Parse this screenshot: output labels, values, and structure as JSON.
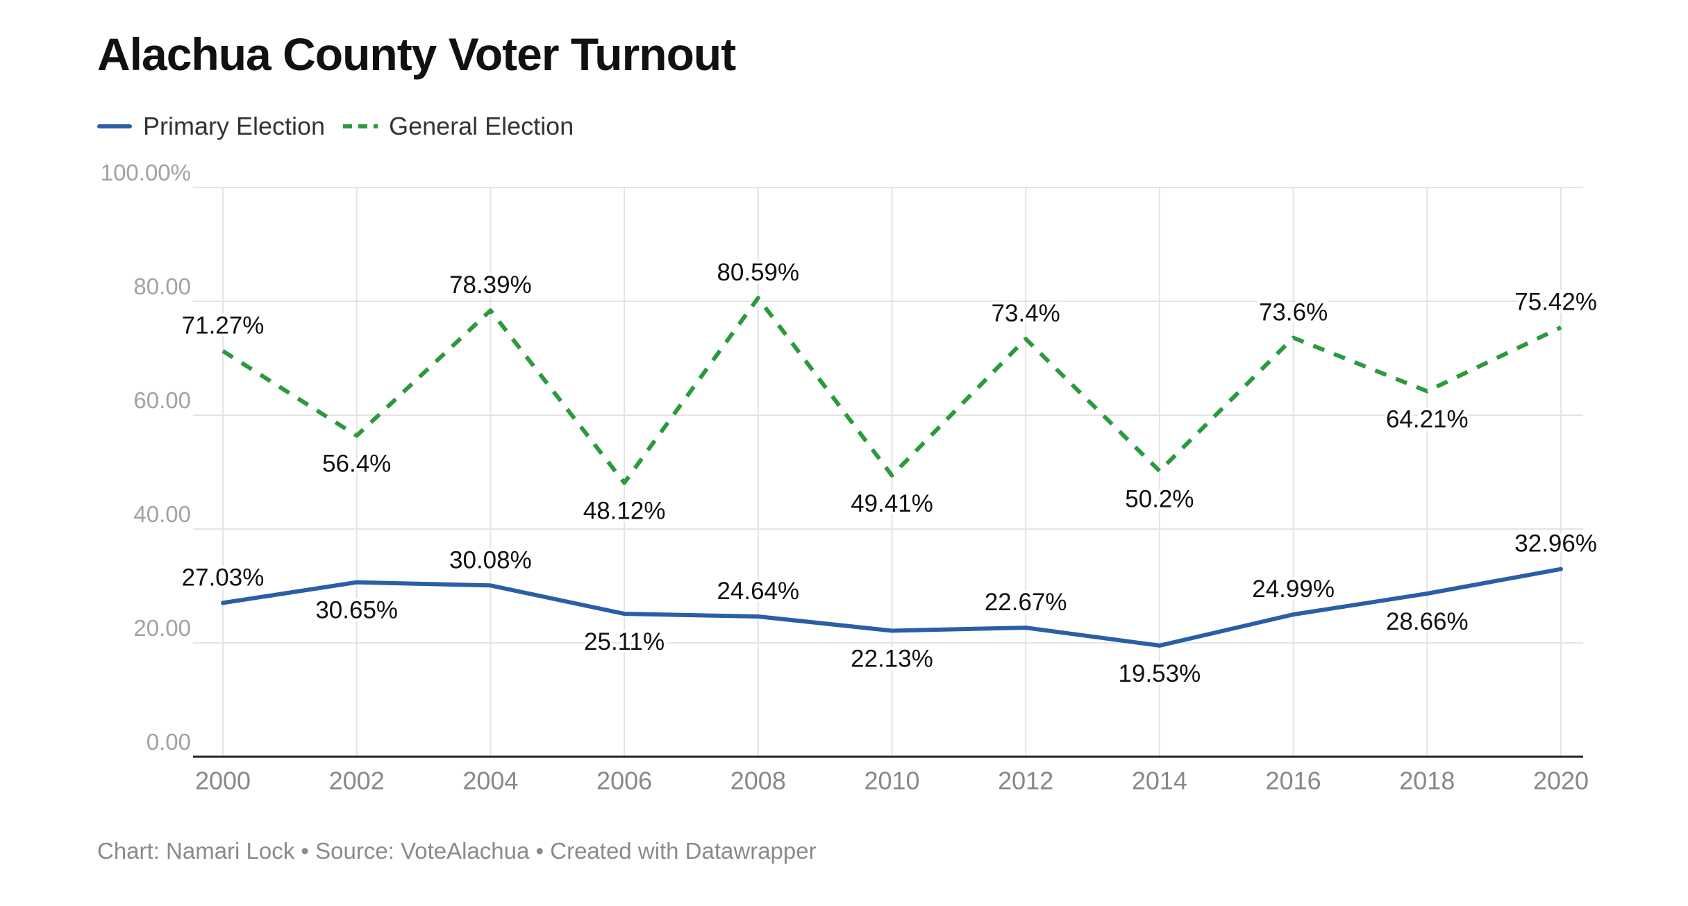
{
  "chart_data": {
    "type": "line",
    "title": "Alachua County Voter Turnout",
    "x": [
      "2000",
      "2002",
      "2004",
      "2006",
      "2008",
      "2010",
      "2012",
      "2014",
      "2016",
      "2018",
      "2020"
    ],
    "yticks": [
      "100.00%",
      "80.00",
      "60.00",
      "40.00",
      "20.00",
      "0.00"
    ],
    "ylim": [
      0,
      100
    ],
    "grid": true,
    "legend_position": "top-left",
    "series": [
      {
        "name": "Primary Election",
        "style": "solid",
        "color": "#2a5ea5",
        "values": [
          27.03,
          30.65,
          30.08,
          25.11,
          24.64,
          22.13,
          22.67,
          19.53,
          24.99,
          28.66,
          32.96
        ],
        "labels": [
          "27.03%",
          "30.65%",
          "30.08%",
          "25.11%",
          "24.64%",
          "22.13%",
          "22.67%",
          "19.53%",
          "24.99%",
          "28.66%",
          "32.96%"
        ],
        "label_side": [
          "above",
          "below",
          "above",
          "below",
          "above",
          "below",
          "above",
          "below",
          "above",
          "below",
          "above"
        ]
      },
      {
        "name": "General Election",
        "style": "dashed",
        "color": "#2a9a3c",
        "values": [
          71.27,
          56.4,
          78.39,
          48.12,
          80.59,
          49.41,
          73.4,
          50.2,
          73.6,
          64.21,
          75.42
        ],
        "labels": [
          "71.27%",
          "56.4%",
          "78.39%",
          "48.12%",
          "80.59%",
          "49.41%",
          "73.4%",
          "50.2%",
          "73.6%",
          "64.21%",
          "75.42%"
        ],
        "label_side": [
          "above",
          "below",
          "above",
          "below",
          "above",
          "below",
          "above",
          "below",
          "above",
          "below",
          "above"
        ]
      }
    ]
  },
  "footer": {
    "credit": "Chart: Namari Lock • Source: VoteAlachua • Created with Datawrapper"
  }
}
